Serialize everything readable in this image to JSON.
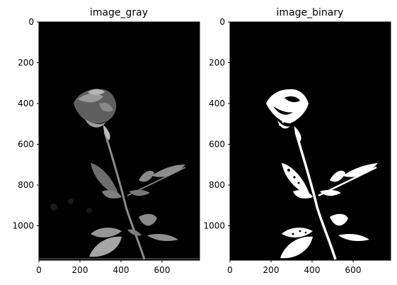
{
  "figure": {
    "panels": [
      {
        "title": "image_gray",
        "x_ticks": [
          "0",
          "200",
          "400",
          "600"
        ],
        "y_ticks": [
          "0",
          "200",
          "400",
          "600",
          "800",
          "1000"
        ],
        "image_kind": "grayscale rose photograph"
      },
      {
        "title": "image_binary",
        "x_ticks": [
          "0",
          "200",
          "400",
          "600"
        ],
        "y_ticks": [
          "0",
          "200",
          "400",
          "600",
          "800",
          "1000"
        ],
        "image_kind": "binary thresholded rose"
      }
    ],
    "colors": {
      "background": "#000000",
      "gray_highlight": "#bdbdbd",
      "gray_mid": "#8a8a8a",
      "binary_fg": "#ffffff"
    }
  }
}
